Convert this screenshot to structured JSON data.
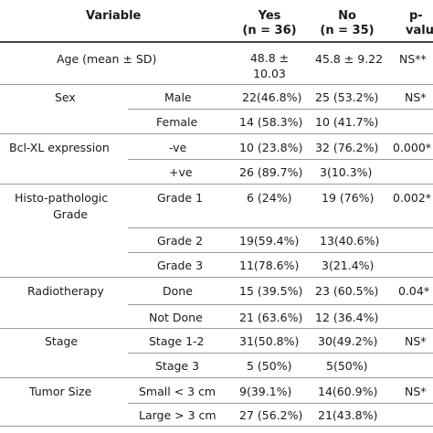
{
  "header": {
    "variable": "Variable",
    "yes": "Yes",
    "yes_n": "(n = 36)",
    "no": "No",
    "no_n": "(n = 35)",
    "p_line1": "p-",
    "p_line2": "value"
  },
  "rows": [
    {
      "variable": "Age (mean ± SD)",
      "sub": "",
      "yes_l1": "48.8 ±",
      "yes_l2": "10.03",
      "no": "45.8 ± 9.22",
      "p": "NS**"
    },
    {
      "variable": "Sex",
      "sub": "Male",
      "yes": "22(46.8%)",
      "no": "25 (53.2%)",
      "p": "NS*"
    },
    {
      "variable": "",
      "sub": "Female",
      "yes": "14 (58.3%)",
      "no": "10 (41.7%)",
      "p": ""
    },
    {
      "variable": "Bcl-XL expression",
      "sub": "-ve",
      "yes": "10 (23.8%)",
      "no": "32 (76.2%)",
      "p": "0.000*"
    },
    {
      "variable": "",
      "sub": "+ve",
      "yes": "26 (89.7%)",
      "no": "3(10.3%)",
      "p": ""
    },
    {
      "variable_l1": "Histo-pathologic",
      "variable_l2": "Grade",
      "sub": "Grade 1",
      "yes": "6 (24%)",
      "no": "19 (76%)",
      "p": "0.002*"
    },
    {
      "variable": "",
      "sub": "Grade 2",
      "yes": "19(59.4%)",
      "no": "13(40.6%)",
      "p": ""
    },
    {
      "variable": "",
      "sub": "Grade 3",
      "yes": "11(78.6%)",
      "no": "3(21.4%)",
      "p": ""
    },
    {
      "variable": "Radiotherapy",
      "sub": "Done",
      "yes": "15 (39.5%)",
      "no": "23 (60.5%)",
      "p": "0.04*"
    },
    {
      "variable": "",
      "sub": "Not Done",
      "yes": "21 (63.6%)",
      "no": "12 (36.4%)",
      "p": ""
    },
    {
      "variable": "Stage",
      "sub": "Stage 1-2",
      "yes": "31(50.8%)",
      "no": "30(49.2%)",
      "p": "NS*"
    },
    {
      "variable": "",
      "sub": "Stage 3",
      "yes": "5 (50%)",
      "no": "5(50%)",
      "p": ""
    },
    {
      "variable": "Tumor Size",
      "sub": "Small < 3 cm",
      "yes": "9(39.1%)",
      "no": "14(60.9%)",
      "p": "NS*"
    },
    {
      "variable": "",
      "sub": "Large > 3 cm",
      "yes": "27 (56.2%)",
      "no": "21(43.8%)",
      "p": ""
    }
  ]
}
